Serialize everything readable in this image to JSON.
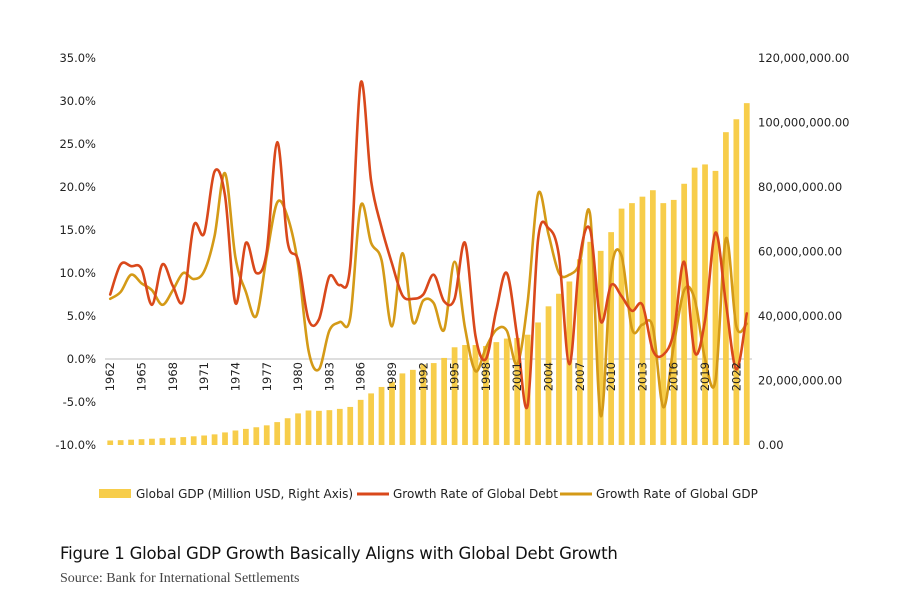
{
  "chart_data": {
    "type": "bar+line",
    "title": "",
    "caption": "Figure 1 Global GDP Growth Basically Aligns with Global Debt Growth",
    "source": "Source: Bank for International Settlements",
    "colors": {
      "gdp_bars": "#f7cd4a",
      "debt_growth": "#d9481b",
      "gdp_growth": "#d49a17"
    },
    "left_axis": {
      "ylim": [
        -10,
        35
      ],
      "ticks": [
        35,
        30,
        25,
        20,
        15,
        10,
        5,
        0,
        -5,
        -10
      ],
      "tick_labels": [
        "35.0%",
        "30.0%",
        "25.0%",
        "20.0%",
        "15.0%",
        "10.0%",
        "5.0%",
        "0.0%",
        "-5.0%",
        "-10.0%"
      ]
    },
    "right_axis": {
      "ylim": [
        0,
        120000000
      ],
      "ticks": [
        120000000,
        100000000,
        80000000,
        60000000,
        40000000,
        20000000,
        0
      ],
      "tick_labels": [
        "120,000,000.00",
        "100,000,000.00",
        "80,000,000.00",
        "60,000,000.00",
        "40,000,000.00",
        "20,000,000.00",
        "0.00"
      ]
    },
    "x_tick_labels": [
      "1962",
      "1965",
      "1968",
      "1971",
      "1974",
      "1977",
      "1980",
      "1983",
      "1986",
      "1989",
      "1992",
      "1995",
      "1998",
      "2001",
      "2004",
      "2007",
      "2010",
      "2013",
      "2016",
      "2019",
      "2022"
    ],
    "years": [
      1962,
      1963,
      1964,
      1965,
      1966,
      1967,
      1968,
      1969,
      1970,
      1971,
      1972,
      1973,
      1974,
      1975,
      1976,
      1977,
      1978,
      1979,
      1980,
      1981,
      1982,
      1983,
      1984,
      1985,
      1986,
      1987,
      1988,
      1989,
      1990,
      1991,
      1992,
      1993,
      1994,
      1995,
      1996,
      1997,
      1998,
      1999,
      2000,
      2001,
      2002,
      2003,
      2004,
      2005,
      2006,
      2007,
      2008,
      2009,
      2010,
      2011,
      2012,
      2013,
      2014,
      2015,
      2016,
      2017,
      2018,
      2019,
      2020,
      2021,
      2022,
      2023
    ],
    "series": [
      {
        "name": "Global GDP (Million USD, Right Axis)",
        "type": "bar",
        "axis": "right",
        "values": [
          1400000,
          1500000,
          1650000,
          1800000,
          1950000,
          2100000,
          2250000,
          2450000,
          2700000,
          2950000,
          3300000,
          3900000,
          4500000,
          5000000,
          5500000,
          6100000,
          7100000,
          8300000,
          9800000,
          10700000,
          10600000,
          10800000,
          11200000,
          11800000,
          14000000,
          16000000,
          18000000,
          19600000,
          22200000,
          23300000,
          25000000,
          25400000,
          27000000,
          30300000,
          31000000,
          31000000,
          30700000,
          31900000,
          33000000,
          33200000,
          34200000,
          38000000,
          43000000,
          46900000,
          50700000,
          57600000,
          63000000,
          60200000,
          66000000,
          73300000,
          75000000,
          77000000,
          79000000,
          75000000,
          76000000,
          81000000,
          86000000,
          87000000,
          85000000,
          97000000,
          101000000,
          106000000
        ]
      },
      {
        "name": "Growth Rate of Global Debt",
        "type": "line",
        "axis": "left",
        "values": [
          7.5,
          11.0,
          10.8,
          10.5,
          6.3,
          11.0,
          8.5,
          6.8,
          15.5,
          14.6,
          21.8,
          19.0,
          6.5,
          13.5,
          10.0,
          12.5,
          25.2,
          13.6,
          11.5,
          4.6,
          4.6,
          9.6,
          8.6,
          10.8,
          32.1,
          20.7,
          15.3,
          11.1,
          7.4,
          7.0,
          7.5,
          9.8,
          6.7,
          7.0,
          13.5,
          2.7,
          0.0,
          5.7,
          10.0,
          2.6,
          -5.4,
          13.9,
          15.2,
          12.0,
          -0.6,
          11.8,
          15.0,
          4.4,
          8.6,
          7.3,
          5.6,
          6.3,
          1.0,
          0.5,
          3.1,
          11.3,
          0.8,
          4.5,
          14.7,
          6.5,
          -1.2,
          5.3
        ]
      },
      {
        "name": "Growth Rate of Global GDP",
        "type": "line",
        "axis": "left",
        "values": [
          7.0,
          7.8,
          9.8,
          8.8,
          8.0,
          6.3,
          8.0,
          10.0,
          9.3,
          10.2,
          14.3,
          21.6,
          11.8,
          7.8,
          5.0,
          12.0,
          18.2,
          16.5,
          11.0,
          1.0,
          -1.2,
          3.3,
          4.3,
          4.8,
          17.8,
          13.5,
          11.5,
          3.8,
          12.3,
          4.3,
          6.8,
          6.5,
          3.4,
          11.3,
          3.6,
          -1.4,
          1.3,
          3.4,
          3.3,
          -0.6,
          6.6,
          19.2,
          14.5,
          10.0,
          9.8,
          11.2,
          16.7,
          -6.6,
          10.2,
          12.0,
          3.5,
          4.0,
          3.7,
          -5.6,
          1.6,
          8.0,
          7.0,
          0.0,
          -2.5,
          14.0,
          3.8,
          4.1
        ]
      }
    ],
    "legend": [
      "Global GDP (Million USD, Right Axis)",
      "Growth Rate of Global Debt",
      "Growth Rate of Global GDP"
    ],
    "legend_position": "bottom"
  }
}
